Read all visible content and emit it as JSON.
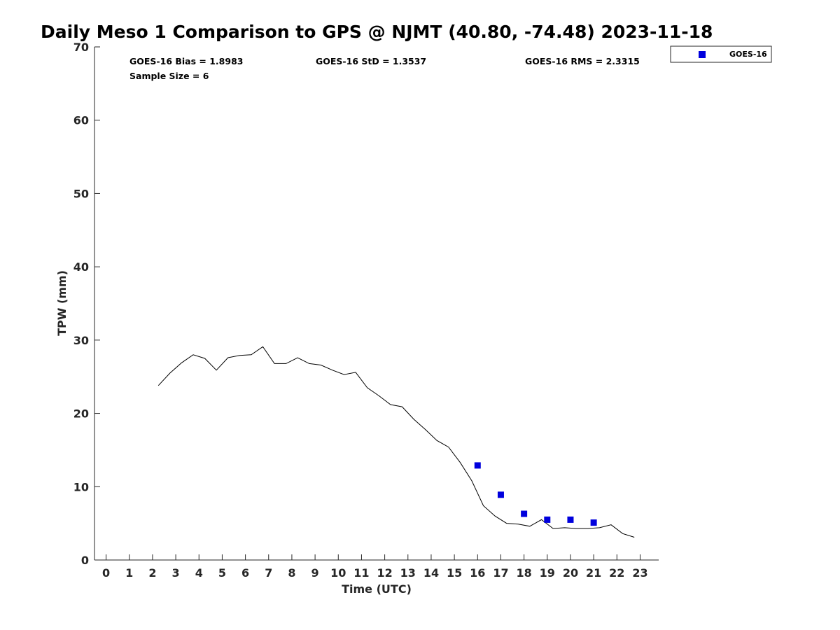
{
  "chart_data": {
    "type": "line",
    "title": "Daily Meso 1 Comparison to GPS @ NJMT (40.80, -74.48) 2023-11-18",
    "xlabel": "Time (UTC)",
    "ylabel": "TPW (mm)",
    "xlim": [
      -0.5,
      23.8
    ],
    "ylim": [
      0,
      70
    ],
    "x_ticks": [
      0,
      1,
      2,
      3,
      4,
      5,
      6,
      7,
      8,
      9,
      10,
      11,
      12,
      13,
      14,
      15,
      16,
      17,
      18,
      19,
      20,
      21,
      22,
      23
    ],
    "y_ticks": [
      0,
      10,
      20,
      30,
      40,
      50,
      60,
      70
    ],
    "grid": false,
    "legend_position": "top-right-outside",
    "stats": {
      "bias": "GOES-16 Bias = 1.8983",
      "std": "GOES-16 StD = 1.3537",
      "rms": "GOES-16 RMS = 2.3315",
      "sample_size": "Sample Size = 6"
    },
    "series": [
      {
        "role": "line",
        "color": "#000000",
        "x": [
          2.25,
          2.75,
          3.25,
          3.75,
          4.25,
          4.75,
          5.25,
          5.75,
          6.25,
          6.75,
          7.25,
          7.75,
          8.25,
          8.75,
          9.25,
          9.75,
          10.25,
          10.75,
          11.25,
          11.75,
          12.25,
          12.75,
          13.25,
          13.75,
          14.25,
          14.75,
          15.25,
          15.75,
          16.25,
          16.75,
          17.25,
          17.75,
          18.25,
          18.75,
          19.25,
          19.75,
          20.25,
          20.75,
          21.25,
          21.75,
          22.25,
          22.75
        ],
        "values": [
          23.8,
          25.5,
          26.9,
          28.0,
          27.5,
          25.9,
          27.6,
          27.9,
          28.0,
          29.1,
          26.8,
          26.8,
          27.6,
          26.8,
          26.6,
          25.9,
          25.3,
          25.6,
          23.5,
          22.4,
          21.2,
          20.9,
          19.2,
          17.8,
          16.3,
          15.4,
          13.3,
          10.8,
          7.4,
          6.0,
          5.0,
          4.9,
          4.6,
          5.5,
          4.3,
          4.4,
          4.3,
          4.3,
          4.4,
          4.8,
          3.6,
          3.1
        ]
      },
      {
        "role": "points",
        "name": "GOES-16",
        "color": "#0000dd",
        "x": [
          16,
          17,
          18,
          19,
          20,
          21
        ],
        "values": [
          12.9,
          8.9,
          6.3,
          5.5,
          5.5,
          5.1
        ]
      }
    ]
  }
}
